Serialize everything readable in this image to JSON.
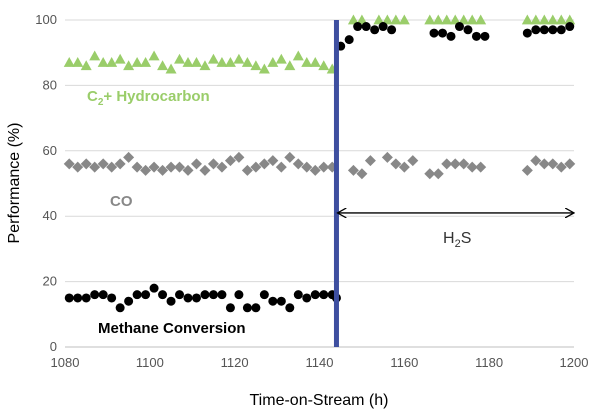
{
  "chart_data": {
    "type": "scatter",
    "title": "",
    "xlabel": "Time-on-Stream (h)",
    "ylabel": "Performance (%)",
    "xlim": [
      1080,
      1200
    ],
    "ylim": [
      0,
      100
    ],
    "xticks": [
      1080,
      1100,
      1120,
      1140,
      1160,
      1180,
      1200
    ],
    "yticks": [
      0,
      20,
      40,
      60,
      80,
      100
    ],
    "grid": "horizontal",
    "legend": "none (series labeled inline)",
    "series": [
      {
        "name": "C2+ Hydrocarbon",
        "label_main": "C",
        "label_sub": "2",
        "label_rest": "+ Hydrocarbon",
        "marker": "triangle",
        "color": "#9acd6a",
        "points": [
          [
            1081,
            87
          ],
          [
            1083,
            87
          ],
          [
            1085,
            86
          ],
          [
            1087,
            89
          ],
          [
            1089,
            87
          ],
          [
            1091,
            87
          ],
          [
            1093,
            88
          ],
          [
            1095,
            86
          ],
          [
            1097,
            87
          ],
          [
            1099,
            87
          ],
          [
            1101,
            89
          ],
          [
            1103,
            86
          ],
          [
            1105,
            85
          ],
          [
            1107,
            88
          ],
          [
            1109,
            87
          ],
          [
            1111,
            87
          ],
          [
            1113,
            86
          ],
          [
            1115,
            88
          ],
          [
            1117,
            87
          ],
          [
            1119,
            87
          ],
          [
            1121,
            88
          ],
          [
            1123,
            87
          ],
          [
            1125,
            86
          ],
          [
            1127,
            85
          ],
          [
            1129,
            87
          ],
          [
            1131,
            88
          ],
          [
            1133,
            86
          ],
          [
            1135,
            89
          ],
          [
            1137,
            87
          ],
          [
            1139,
            87
          ],
          [
            1141,
            86
          ],
          [
            1143,
            85
          ],
          [
            1148,
            100
          ],
          [
            1150,
            100
          ],
          [
            1154,
            100
          ],
          [
            1156,
            100
          ],
          [
            1158,
            100
          ],
          [
            1160,
            100
          ],
          [
            1166,
            100
          ],
          [
            1168,
            100
          ],
          [
            1170,
            100
          ],
          [
            1172,
            100
          ],
          [
            1174,
            100
          ],
          [
            1176,
            100
          ],
          [
            1178,
            100
          ],
          [
            1189,
            100
          ],
          [
            1191,
            100
          ],
          [
            1193,
            100
          ],
          [
            1195,
            100
          ],
          [
            1197,
            100
          ],
          [
            1199,
            100
          ]
        ]
      },
      {
        "name": "CO",
        "label_main": "CO",
        "marker": "diamond",
        "color": "#888888",
        "points": [
          [
            1081,
            56
          ],
          [
            1083,
            55
          ],
          [
            1085,
            56
          ],
          [
            1087,
            55
          ],
          [
            1089,
            56
          ],
          [
            1091,
            55
          ],
          [
            1093,
            56
          ],
          [
            1095,
            58
          ],
          [
            1097,
            55
          ],
          [
            1099,
            54
          ],
          [
            1101,
            55
          ],
          [
            1103,
            54
          ],
          [
            1105,
            55
          ],
          [
            1107,
            55
          ],
          [
            1109,
            54
          ],
          [
            1111,
            56
          ],
          [
            1113,
            54
          ],
          [
            1115,
            56
          ],
          [
            1117,
            55
          ],
          [
            1119,
            57
          ],
          [
            1121,
            58
          ],
          [
            1123,
            54
          ],
          [
            1125,
            55
          ],
          [
            1127,
            56
          ],
          [
            1129,
            57
          ],
          [
            1131,
            55
          ],
          [
            1133,
            58
          ],
          [
            1135,
            56
          ],
          [
            1137,
            55
          ],
          [
            1139,
            54
          ],
          [
            1141,
            55
          ],
          [
            1143,
            55
          ],
          [
            1148,
            54
          ],
          [
            1150,
            53
          ],
          [
            1152,
            57
          ],
          [
            1156,
            58
          ],
          [
            1158,
            56
          ],
          [
            1160,
            55
          ],
          [
            1162,
            57
          ],
          [
            1166,
            53
          ],
          [
            1168,
            53
          ],
          [
            1170,
            56
          ],
          [
            1172,
            56
          ],
          [
            1174,
            56
          ],
          [
            1176,
            55
          ],
          [
            1178,
            55
          ],
          [
            1189,
            54
          ],
          [
            1191,
            57
          ],
          [
            1193,
            56
          ],
          [
            1195,
            56
          ],
          [
            1197,
            55
          ],
          [
            1199,
            56
          ]
        ]
      },
      {
        "name": "Methane Conversion",
        "label_main": "Methane Conversion",
        "marker": "circle",
        "color": "#000000",
        "points": [
          [
            1081,
            15
          ],
          [
            1083,
            15
          ],
          [
            1085,
            15
          ],
          [
            1087,
            16
          ],
          [
            1089,
            16
          ],
          [
            1091,
            15
          ],
          [
            1093,
            12
          ],
          [
            1095,
            14
          ],
          [
            1097,
            16
          ],
          [
            1099,
            16
          ],
          [
            1101,
            18
          ],
          [
            1103,
            16
          ],
          [
            1105,
            14
          ],
          [
            1107,
            16
          ],
          [
            1109,
            15
          ],
          [
            1111,
            15
          ],
          [
            1113,
            16
          ],
          [
            1115,
            16
          ],
          [
            1117,
            16
          ],
          [
            1119,
            12
          ],
          [
            1121,
            16
          ],
          [
            1123,
            12
          ],
          [
            1125,
            12
          ],
          [
            1127,
            16
          ],
          [
            1129,
            14
          ],
          [
            1131,
            14
          ],
          [
            1133,
            12
          ],
          [
            1135,
            16
          ],
          [
            1137,
            15
          ],
          [
            1139,
            16
          ],
          [
            1141,
            16
          ],
          [
            1143,
            16
          ],
          [
            1144,
            15
          ],
          [
            1145,
            92
          ],
          [
            1147,
            94
          ],
          [
            1149,
            98
          ],
          [
            1151,
            98
          ],
          [
            1153,
            97
          ],
          [
            1155,
            98
          ],
          [
            1157,
            97
          ],
          [
            1167,
            96
          ],
          [
            1169,
            96
          ],
          [
            1171,
            95
          ],
          [
            1173,
            98
          ],
          [
            1175,
            97
          ],
          [
            1177,
            95
          ],
          [
            1179,
            95
          ],
          [
            1189,
            96
          ],
          [
            1191,
            97
          ],
          [
            1193,
            97
          ],
          [
            1195,
            97
          ],
          [
            1197,
            97
          ],
          [
            1199,
            98
          ]
        ]
      }
    ],
    "annotations": {
      "event_line_x": 1144,
      "event_line_color": "#3e4fa0",
      "h2s_arrow": {
        "x_start": 1144,
        "x_end": 1200,
        "y": 41
      },
      "h2s_label_main": "H",
      "h2s_label_sub": "2",
      "h2s_label_rest": "S"
    }
  }
}
